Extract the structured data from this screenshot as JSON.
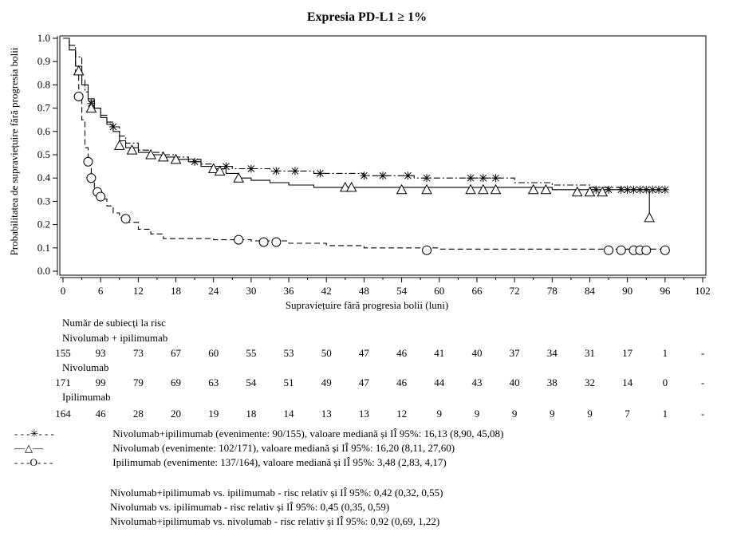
{
  "chart_data": {
    "type": "line",
    "title": "Expresia PD-L1 ≥ 1%",
    "xlabel": "Supraviețuire fără progresia bolii (luni)",
    "ylabel": "Probabilitatea de supraviețuire fără progresia bolii",
    "xlim": [
      0,
      102
    ],
    "ylim": [
      0,
      1.0
    ],
    "xticks": [
      0,
      3,
      6,
      9,
      12,
      15,
      18,
      21,
      24,
      27,
      30,
      33,
      36,
      39,
      42,
      45,
      48,
      51,
      54,
      57,
      60,
      63,
      66,
      69,
      72,
      75,
      78,
      81,
      84,
      87,
      90,
      93,
      96,
      99,
      102
    ],
    "xtick_labels": [
      "0",
      "6",
      "12",
      "18",
      "24",
      "30",
      "36",
      "42",
      "48",
      "54",
      "60",
      "66",
      "72",
      "78",
      "84",
      "90",
      "96",
      "102"
    ],
    "yticks": [
      0.0,
      0.1,
      0.2,
      0.3,
      0.4,
      0.5,
      0.6,
      0.7,
      0.8,
      0.9,
      1.0
    ],
    "ytick_labels": [
      "0.0",
      "0.1",
      "0.2",
      "0.3",
      "0.4",
      "0.5",
      "0.6",
      "0.7",
      "0.8",
      "0.9",
      "1.0"
    ],
    "series": [
      {
        "name": "Nivolumab+ipilimumab",
        "color": "#000000",
        "dash": "8,3,2,3",
        "marker": "star",
        "x": [
          0,
          1,
          2,
          3,
          3.5,
          4,
          5,
          6,
          7,
          8,
          9,
          10,
          12,
          14,
          16,
          18,
          20,
          22,
          24,
          27,
          30,
          33,
          36,
          40,
          44,
          48,
          52,
          56,
          60,
          66,
          72,
          78,
          84,
          90,
          96
        ],
        "y": [
          1.0,
          0.97,
          0.92,
          0.82,
          0.77,
          0.73,
          0.7,
          0.67,
          0.64,
          0.62,
          0.58,
          0.55,
          0.52,
          0.51,
          0.5,
          0.49,
          0.48,
          0.46,
          0.45,
          0.44,
          0.44,
          0.43,
          0.43,
          0.42,
          0.42,
          0.41,
          0.41,
          0.4,
          0.4,
          0.4,
          0.38,
          0.37,
          0.36,
          0.35,
          0.35
        ],
        "censors": [
          [
            4.5,
            0.72
          ],
          [
            8,
            0.62
          ],
          [
            21,
            0.47
          ],
          [
            26,
            0.45
          ],
          [
            30,
            0.44
          ],
          [
            34,
            0.43
          ],
          [
            37,
            0.43
          ],
          [
            41,
            0.42
          ],
          [
            48,
            0.41
          ],
          [
            51,
            0.41
          ],
          [
            55,
            0.41
          ],
          [
            58,
            0.4
          ],
          [
            65,
            0.4
          ],
          [
            67,
            0.4
          ],
          [
            69,
            0.4
          ],
          [
            85,
            0.35
          ],
          [
            87,
            0.35
          ],
          [
            89,
            0.35
          ],
          [
            90,
            0.35
          ],
          [
            91,
            0.35
          ],
          [
            92,
            0.35
          ],
          [
            93,
            0.35
          ],
          [
            94,
            0.35
          ],
          [
            95,
            0.35
          ],
          [
            96,
            0.35
          ]
        ]
      },
      {
        "name": "Nivolumab",
        "color": "#000000",
        "dash": "",
        "marker": "triangle",
        "x": [
          0,
          1,
          2,
          3,
          4,
          5,
          6,
          7,
          8,
          9,
          10,
          12,
          14,
          16,
          18,
          20,
          22,
          24,
          26,
          28,
          30,
          33,
          36,
          40,
          44,
          48,
          52,
          56,
          60,
          66,
          72,
          78,
          84,
          90,
          93.5,
          93.5
        ],
        "y": [
          1.0,
          0.95,
          0.88,
          0.8,
          0.74,
          0.7,
          0.66,
          0.63,
          0.6,
          0.56,
          0.53,
          0.51,
          0.5,
          0.49,
          0.48,
          0.47,
          0.45,
          0.44,
          0.42,
          0.4,
          0.39,
          0.38,
          0.37,
          0.36,
          0.36,
          0.36,
          0.36,
          0.36,
          0.36,
          0.36,
          0.36,
          0.35,
          0.35,
          0.35,
          0.35,
          0.23
        ],
        "censors": [
          [
            2.5,
            0.86
          ],
          [
            4.5,
            0.7
          ],
          [
            9,
            0.54
          ],
          [
            11,
            0.52
          ],
          [
            14,
            0.5
          ],
          [
            16,
            0.49
          ],
          [
            18,
            0.48
          ],
          [
            24,
            0.44
          ],
          [
            25,
            0.43
          ],
          [
            28,
            0.4
          ],
          [
            45,
            0.36
          ],
          [
            46,
            0.36
          ],
          [
            54,
            0.35
          ],
          [
            58,
            0.35
          ],
          [
            65,
            0.35
          ],
          [
            67,
            0.35
          ],
          [
            69,
            0.35
          ],
          [
            75,
            0.35
          ],
          [
            77,
            0.35
          ],
          [
            82,
            0.34
          ],
          [
            84,
            0.34
          ],
          [
            86,
            0.34
          ],
          [
            93.5,
            0.23
          ]
        ]
      },
      {
        "name": "Ipilimumab",
        "color": "#000000",
        "dash": "7,4",
        "marker": "circle",
        "x": [
          0,
          1,
          2,
          2.5,
          3,
          3.5,
          4,
          4.5,
          5,
          5.5,
          6,
          7,
          8,
          9,
          10,
          12,
          14,
          16,
          18,
          24,
          30,
          36,
          42,
          48,
          54,
          60,
          66,
          72,
          84,
          96
        ],
        "y": [
          1.0,
          0.95,
          0.85,
          0.75,
          0.65,
          0.53,
          0.46,
          0.4,
          0.35,
          0.33,
          0.31,
          0.28,
          0.25,
          0.23,
          0.21,
          0.18,
          0.16,
          0.14,
          0.14,
          0.135,
          0.13,
          0.12,
          0.11,
          0.1,
          0.1,
          0.095,
          0.095,
          0.095,
          0.095,
          0.095
        ],
        "censors": [
          [
            2.5,
            0.75
          ],
          [
            4,
            0.47
          ],
          [
            4.5,
            0.4
          ],
          [
            5.5,
            0.34
          ],
          [
            6,
            0.32
          ],
          [
            10,
            0.225
          ],
          [
            28,
            0.135
          ],
          [
            32,
            0.125
          ],
          [
            34,
            0.125
          ],
          [
            58,
            0.09
          ],
          [
            87,
            0.09
          ],
          [
            89,
            0.09
          ],
          [
            91,
            0.09
          ],
          [
            92,
            0.09
          ],
          [
            93,
            0.09
          ],
          [
            96,
            0.09
          ]
        ]
      }
    ]
  },
  "risk_table": {
    "title": "Număr de subiecți la risc",
    "groups": [
      {
        "label": "Nivolumab + ipilimumab",
        "values": [
          "155",
          "93",
          "73",
          "67",
          "60",
          "55",
          "53",
          "50",
          "47",
          "46",
          "41",
          "40",
          "37",
          "34",
          "31",
          "17",
          "1",
          "-"
        ]
      },
      {
        "label": "Nivolumab",
        "values": [
          "171",
          "99",
          "79",
          "69",
          "63",
          "54",
          "51",
          "49",
          "47",
          "46",
          "44",
          "43",
          "40",
          "38",
          "32",
          "14",
          "0",
          "-"
        ]
      },
      {
        "label": "Ipilimumab",
        "values": [
          "164",
          "46",
          "28",
          "20",
          "19",
          "18",
          "14",
          "13",
          "13",
          "12",
          "9",
          "9",
          "9",
          "9",
          "9",
          "7",
          "1",
          "-"
        ]
      }
    ]
  },
  "legend": {
    "entries": [
      {
        "symbol": "- - -✳- - -",
        "text": "Nivolumab+ipilimumab (evenimente: 90/155), valoare mediană și IÎ 95%: 16,13 (8,90, 45,08)"
      },
      {
        "symbol": "—△—",
        "text": "Nivolumab (evenimente: 102/171), valoare mediană și IÎ 95%: 16,20 (8,11, 27,60)"
      },
      {
        "symbol": "- - -O- - -",
        "text": "Ipilimumab (evenimente: 137/164), valoare mediană și IÎ 95%: 3,48 (2,83, 4,17)"
      }
    ],
    "comparisons": [
      "Nivolumab+ipilimumab vs. ipilimumab - risc relativ și IÎ 95%: 0,42 (0,32, 0,55)",
      "Nivolumab vs. ipilimumab - risc relativ și IÎ 95%: 0,45 (0,35, 0,59)",
      "Nivolumab+ipilimumab vs. nivolumab - risc relativ și IÎ 95%: 0,92 (0,69, 1,22)"
    ]
  }
}
